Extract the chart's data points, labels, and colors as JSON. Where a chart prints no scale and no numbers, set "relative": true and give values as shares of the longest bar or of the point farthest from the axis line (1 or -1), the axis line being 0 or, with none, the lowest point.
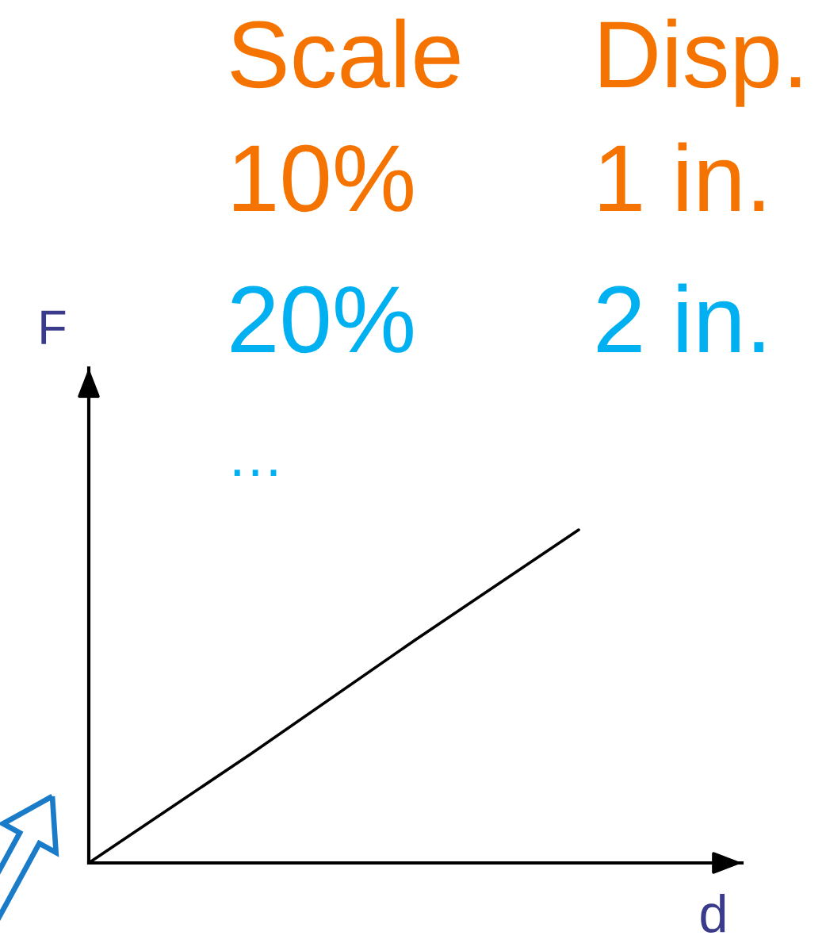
{
  "chart_data": {
    "type": "line",
    "relative": true,
    "xlabel": "d",
    "ylabel": "F",
    "categories": [
      null,
      null,
      null,
      null,
      null
    ],
    "series": [
      {
        "color": "#000000",
        "values": [
          0,
          0.33,
          0.67,
          1,
          null
        ]
      }
    ],
    "annotations": [
      "Scale",
      "Disp.",
      "10%",
      "1 in.",
      "20%",
      "2 in.",
      "…"
    ]
  }
}
